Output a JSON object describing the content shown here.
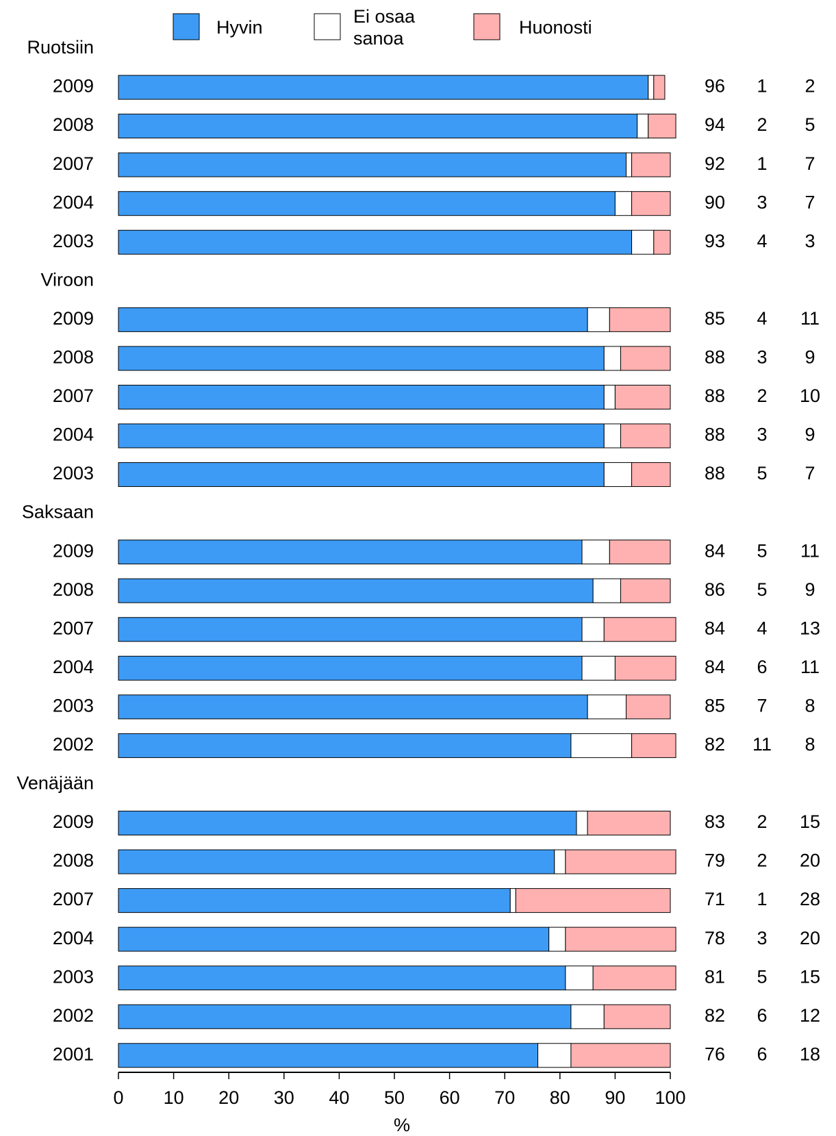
{
  "chart_data": {
    "type": "bar",
    "orientation": "horizontal",
    "stacked": true,
    "groups": [
      {
        "title": "Ruotsiin",
        "categories": [
          "2009",
          "2008",
          "2007",
          "2004",
          "2003"
        ]
      },
      {
        "title": "Viroon",
        "categories": [
          "2009",
          "2008",
          "2007",
          "2004",
          "2003"
        ]
      },
      {
        "title": "Saksaan",
        "categories": [
          "2009",
          "2008",
          "2007",
          "2004",
          "2003",
          "2002"
        ]
      },
      {
        "title": "Venäjään",
        "categories": [
          "2009",
          "2008",
          "2007",
          "2004",
          "2003",
          "2002",
          "2001"
        ]
      }
    ],
    "series": [
      {
        "name": "Hyvin",
        "color": "#3d9bf5",
        "values": [
          96,
          94,
          92,
          90,
          93,
          85,
          88,
          88,
          88,
          88,
          84,
          86,
          84,
          84,
          85,
          82,
          83,
          79,
          71,
          78,
          81,
          82,
          76
        ]
      },
      {
        "name": "Ei osaa sanoa",
        "color": "#ffffff",
        "values": [
          1,
          2,
          1,
          3,
          4,
          4,
          3,
          2,
          3,
          5,
          5,
          5,
          4,
          6,
          7,
          11,
          2,
          2,
          1,
          3,
          5,
          6,
          6
        ]
      },
      {
        "name": "Huonosti",
        "color": "#ffb1b1",
        "values": [
          2,
          5,
          7,
          7,
          3,
          11,
          9,
          10,
          9,
          7,
          11,
          9,
          13,
          11,
          8,
          8,
          15,
          20,
          28,
          20,
          15,
          12,
          18
        ]
      }
    ],
    "xlim": [
      0,
      100
    ],
    "xticks": [
      0,
      10,
      20,
      30,
      40,
      50,
      60,
      70,
      80,
      90,
      100
    ],
    "xlabel": "%"
  }
}
